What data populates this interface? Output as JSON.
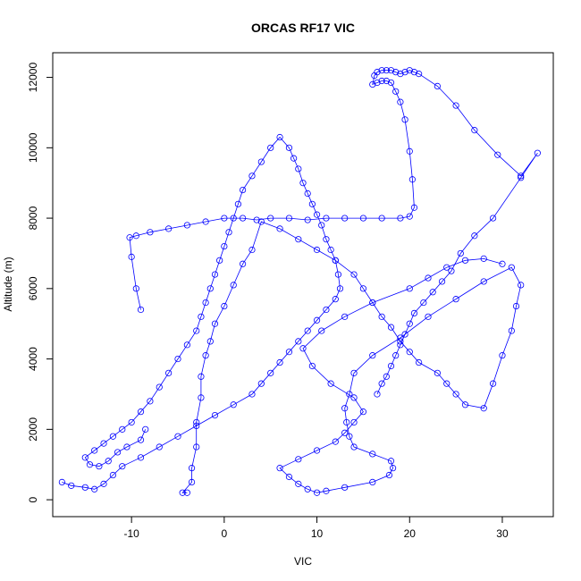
{
  "chart_data": {
    "type": "line",
    "title": "ORCAS RF17 VIC",
    "xlabel": "VIC",
    "ylabel": "Altitude (m)",
    "xlim": [
      -18.5,
      35.5
    ],
    "ylim": [
      -480,
      12700
    ],
    "x_ticks": [
      -10,
      0,
      10,
      20,
      30
    ],
    "y_ticks": [
      0,
      2000,
      4000,
      6000,
      8000,
      10000,
      12000
    ],
    "grid": false,
    "legend": "none",
    "series_color": "#0000ff",
    "series": [
      {
        "x": [
          -4.0,
          -4.5,
          -3.5,
          -3.5,
          -3.0,
          -3.0,
          -2.5,
          -2.5,
          -2.0,
          -1.5,
          -1.0,
          0.0,
          1.0,
          2.0,
          3.0,
          4.0,
          6.0,
          8.0,
          10.0,
          12.0,
          14.0,
          15.0,
          16.0,
          17.0,
          18.0,
          19.0,
          20.0,
          21.0,
          23.0,
          24.0,
          25.0,
          26.0,
          28.0,
          29.0,
          30.0,
          31.0,
          31.5,
          32.0,
          31.0,
          28.0,
          25.0,
          22.0,
          19.0,
          16.0,
          14.0,
          13.5,
          13.0,
          13.2,
          13.5,
          14.0,
          16.0,
          18.0,
          18.2,
          17.8,
          16.0,
          13.0,
          11.0,
          10.0,
          9.0,
          8.0,
          7.0,
          6.0,
          8.0,
          10.0,
          12.0,
          13.0,
          14.0,
          15.0,
          14.0,
          11.5,
          9.5,
          8.5,
          10.5,
          13.0,
          16.0,
          20.0,
          22.0,
          24.0,
          26.0,
          28.0,
          30.0
        ],
        "y": [
          200,
          200,
          500,
          900,
          1500,
          2200,
          2900,
          3500,
          4100,
          4500,
          5000,
          5500,
          6100,
          6700,
          7100,
          7900,
          7700,
          7400,
          7100,
          6800,
          6400,
          6000,
          5600,
          5200,
          4900,
          4500,
          4200,
          3900,
          3600,
          3300,
          3000,
          2700,
          2600,
          3300,
          4100,
          4800,
          5500,
          6100,
          6600,
          6200,
          5700,
          5200,
          4600,
          4100,
          3600,
          3000,
          2600,
          2200,
          1800,
          1500,
          1300,
          1100,
          900,
          700,
          500,
          350,
          250,
          200,
          300,
          450,
          650,
          900,
          1150,
          1400,
          1650,
          1900,
          2200,
          2500,
          2900,
          3300,
          3800,
          4300,
          4800,
          5200,
          5600,
          6000,
          6300,
          6600,
          6800,
          6850,
          6700
        ]
      },
      {
        "x": [
          -17.5,
          -16.5,
          -15.0,
          -14.0,
          -13.0,
          -12.0,
          -11.0,
          -9.0,
          -7.0,
          -5.0,
          -3.0,
          -1.0,
          1.0,
          3.0,
          4.0,
          5.0,
          6.0,
          7.0,
          8.0,
          9.0,
          10.0,
          11.0,
          12.0,
          12.5,
          12.3,
          12.0,
          11.5,
          11.0,
          10.5,
          10.0,
          9.5,
          9.0,
          8.5,
          8.0,
          7.5,
          7.0,
          6.0,
          5.0,
          4.0,
          3.0,
          2.0,
          1.5,
          1.0,
          0.5,
          0.0,
          -0.5,
          -1.0,
          -1.5,
          -2.0,
          -2.5,
          -3.0,
          -4.0,
          -5.0,
          -6.0,
          -7.0,
          -8.0,
          -9.0,
          -10.0,
          -11.0,
          -12.0,
          -13.0,
          -14.0,
          -15.0,
          -14.5,
          -13.5,
          -12.5,
          -11.5,
          -10.5,
          -9.0,
          -8.5
        ],
        "y": [
          500,
          400,
          350,
          300,
          450,
          700,
          950,
          1200,
          1500,
          1800,
          2100,
          2400,
          2700,
          3000,
          3300,
          3600,
          3900,
          4200,
          4500,
          4800,
          5100,
          5400,
          5700,
          6000,
          6400,
          6800,
          7100,
          7400,
          7800,
          8100,
          8400,
          8700,
          9000,
          9400,
          9700,
          10000,
          10300,
          10000,
          9600,
          9200,
          8800,
          8400,
          8000,
          7600,
          7200,
          6800,
          6400,
          6000,
          5600,
          5200,
          4800,
          4400,
          4000,
          3600,
          3200,
          2800,
          2500,
          2200,
          2000,
          1800,
          1600,
          1400,
          1200,
          1000,
          950,
          1100,
          1350,
          1500,
          1700,
          2000
        ]
      },
      {
        "x": [
          -9.0,
          -9.5,
          -10.0,
          -10.2,
          -9.5,
          -8.0,
          -6.0,
          -4.0,
          -2.0,
          0.0,
          2.0,
          3.5,
          5.0,
          7.0,
          9.0,
          11.0,
          13.0,
          15.0,
          17.0,
          19.0,
          20.0,
          20.5,
          20.3,
          20.0,
          19.5,
          19.0,
          18.5,
          18.0,
          17.5,
          17.0,
          16.5,
          16.0,
          16.2,
          16.5,
          17.0,
          17.5,
          18.0,
          18.5,
          19.0,
          19.5,
          20.0,
          20.5,
          21.0,
          23.0,
          25.0,
          27.0,
          29.5,
          32.0,
          33.8,
          32.0,
          29.0,
          27.0,
          25.5,
          24.5,
          23.5,
          22.5,
          21.5,
          20.5,
          20.0,
          19.5,
          19.0,
          18.5,
          18.0,
          17.5,
          17.0,
          16.5
        ],
        "y": [
          5400,
          6000,
          6900,
          7450,
          7500,
          7600,
          7700,
          7800,
          7900,
          8000,
          8000,
          7950,
          8000,
          8000,
          7950,
          8000,
          8000,
          8000,
          8000,
          8000,
          8050,
          8300,
          9100,
          9900,
          10800,
          11300,
          11600,
          11850,
          11900,
          11900,
          11850,
          11800,
          12050,
          12150,
          12200,
          12200,
          12200,
          12150,
          12100,
          12150,
          12200,
          12150,
          12100,
          11750,
          11200,
          10500,
          9800,
          9200,
          9850,
          9150,
          8000,
          7500,
          7000,
          6500,
          6200,
          5900,
          5600,
          5300,
          5000,
          4700,
          4400,
          4100,
          3800,
          3500,
          3300,
          3000
        ]
      }
    ]
  }
}
